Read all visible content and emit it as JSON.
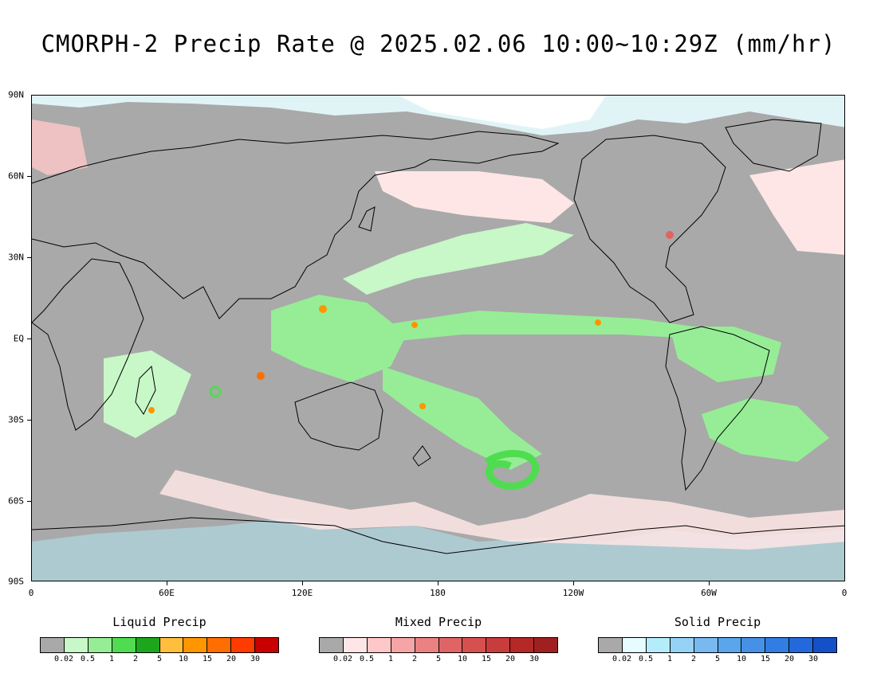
{
  "title": "CMORPH-2 Precip Rate @ 2025.02.06 10:00~10:29Z (mm/hr)",
  "map": {
    "lat_labels": [
      "90N",
      "60N",
      "30N",
      "EQ",
      "30S",
      "60S",
      "90S"
    ],
    "lon_labels": [
      "0",
      "60E",
      "120E",
      "180",
      "120W",
      "60W",
      "0"
    ],
    "background_color": "#a9a9a9"
  },
  "legends": [
    {
      "title": "Liquid Precip",
      "colors": [
        "#a9a9a9",
        "#c8f7c8",
        "#96ed96",
        "#50dc50",
        "#1ea51e",
        "#ffbe3c",
        "#ff9600",
        "#ff6e00",
        "#ff3c00",
        "#c80000"
      ],
      "labels": [
        "0.02",
        "0.5",
        "1",
        "2",
        "5",
        "10",
        "15",
        "20",
        "30"
      ]
    },
    {
      "title": "Mixed Precip",
      "colors": [
        "#a9a9a9",
        "#ffe6e6",
        "#ffc8c8",
        "#f5a5a5",
        "#eb8282",
        "#e16464",
        "#d75050",
        "#c83c3c",
        "#b42828",
        "#a02020"
      ],
      "labels": [
        "0.02",
        "0.5",
        "1",
        "2",
        "5",
        "10",
        "15",
        "20",
        "30"
      ]
    },
    {
      "title": "Solid Precip",
      "colors": [
        "#a9a9a9",
        "#e6fcff",
        "#b4ecfa",
        "#96d2f5",
        "#78b9f0",
        "#5aa5eb",
        "#4691e6",
        "#327de1",
        "#2369dc",
        "#1450c8"
      ],
      "labels": [
        "0.02",
        "0.5",
        "1",
        "2",
        "5",
        "10",
        "15",
        "20",
        "30"
      ]
    }
  ]
}
